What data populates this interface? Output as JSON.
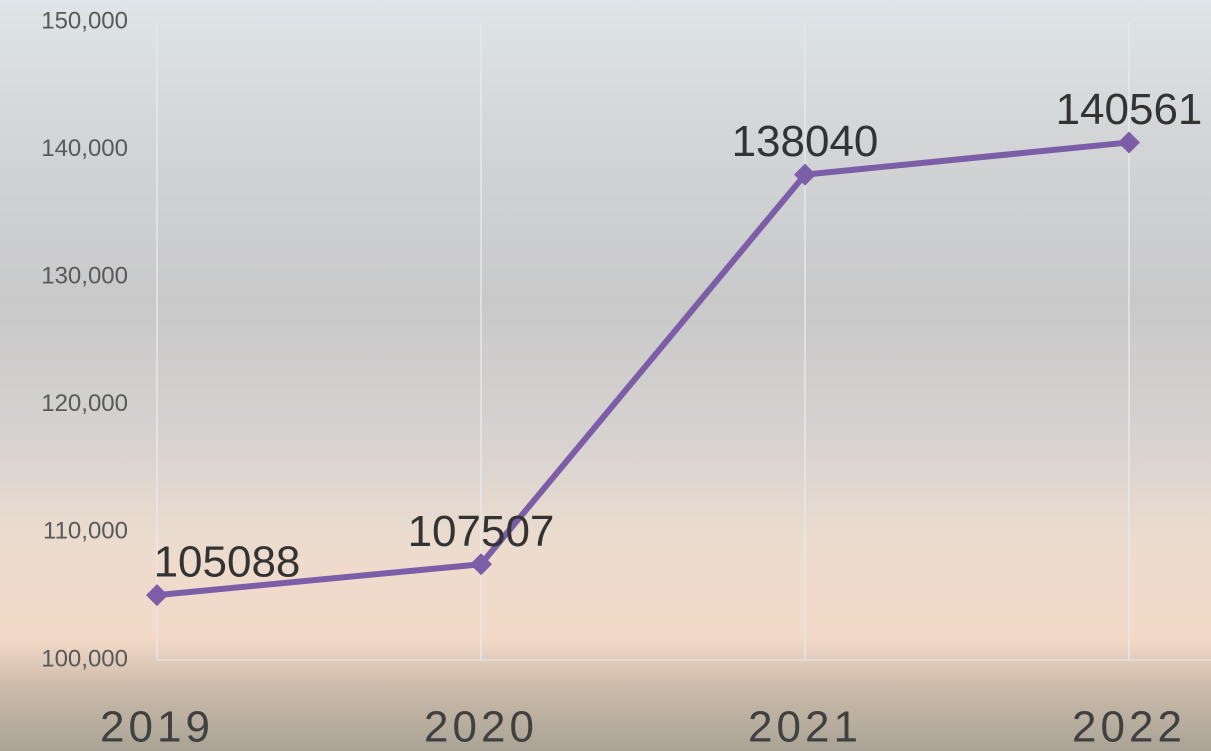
{
  "chart_data": {
    "type": "line",
    "categories": [
      "2019",
      "2020",
      "2021",
      "2022"
    ],
    "series": [
      {
        "name": null,
        "color": "#7b5ea7",
        "values": [
          105088,
          107507,
          138040,
          140561
        ]
      }
    ],
    "ylim": [
      100000,
      150000
    ],
    "yticks": [
      {
        "value": 100000,
        "label": "100,000"
      },
      {
        "value": 110000,
        "label": "110,000"
      },
      {
        "value": 120000,
        "label": "120,000"
      },
      {
        "value": 130000,
        "label": "130,000"
      },
      {
        "value": 140000,
        "label": "140,000"
      },
      {
        "value": 150000,
        "label": "150,000"
      }
    ],
    "grid": true
  }
}
